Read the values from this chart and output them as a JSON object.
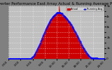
{
  "title": "Solar PV/Inverter Performance East Array Actual & Running Average Power Output",
  "bg_color": "#808080",
  "plot_bg_color": "#c0c0c0",
  "grid_color": "#ffffff",
  "bar_color": "#cc0000",
  "avg_line_color": "#0000ff",
  "legend_actual_color": "#cc0000",
  "legend_avg_color": "#0000cc",
  "x_count": 288,
  "ylim": [
    0,
    5000
  ],
  "yticks": [
    0,
    500,
    1000,
    1500,
    2000,
    2500,
    3000,
    3500,
    4000,
    4500,
    5000
  ],
  "ytick_labels": [
    "0",
    "",
    "1k",
    "",
    "2k",
    "",
    "3k",
    "",
    "4k",
    "",
    "5k"
  ],
  "title_fontsize": 4.0,
  "tick_fontsize": 3.0,
  "actual_values_key": "see_below",
  "xtick_positions": [
    0,
    36,
    72,
    108,
    144,
    180,
    216,
    252,
    287
  ],
  "xtick_labels": [
    "0:00",
    "3:00",
    "6:00",
    "9:00",
    "12:00",
    "15:00",
    "18:00",
    "21:00",
    "24:00"
  ]
}
